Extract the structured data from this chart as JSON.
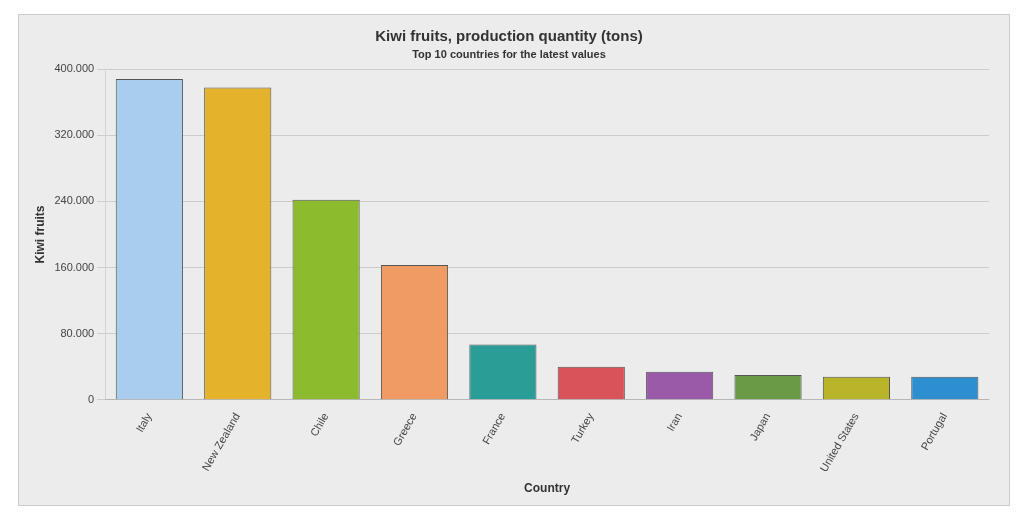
{
  "chart_data": {
    "type": "bar",
    "title": "Kiwi fruits, production quantity (tons)",
    "subtitle": "Top 10 countries for the latest values",
    "xlabel": "Country",
    "ylabel": "Kiwi fruits",
    "categories": [
      "Italy",
      "New Zealand",
      "Chile",
      "Greece",
      "France",
      "Turkey",
      "Iran",
      "Japan",
      "United States",
      "Portugal"
    ],
    "values": [
      388000,
      378000,
      242000,
      163000,
      67000,
      40000,
      34000,
      30000,
      28000,
      28000
    ],
    "colors": [
      "#a9cdee",
      "#e5b22c",
      "#8dbb2e",
      "#f09a64",
      "#2a9d97",
      "#d9545a",
      "#9b5aa8",
      "#6a9a45",
      "#b8b52a",
      "#2d8fd0"
    ],
    "ylim": [
      0,
      400000
    ],
    "yticks": [
      {
        "value": 0,
        "label": "0"
      },
      {
        "value": 80000,
        "label": "80.000"
      },
      {
        "value": 160000,
        "label": "160.000"
      },
      {
        "value": 240000,
        "label": "240.000"
      },
      {
        "value": 320000,
        "label": "320.000"
      },
      {
        "value": 400000,
        "label": "400.000"
      }
    ],
    "grid": "y",
    "legend": false
  }
}
